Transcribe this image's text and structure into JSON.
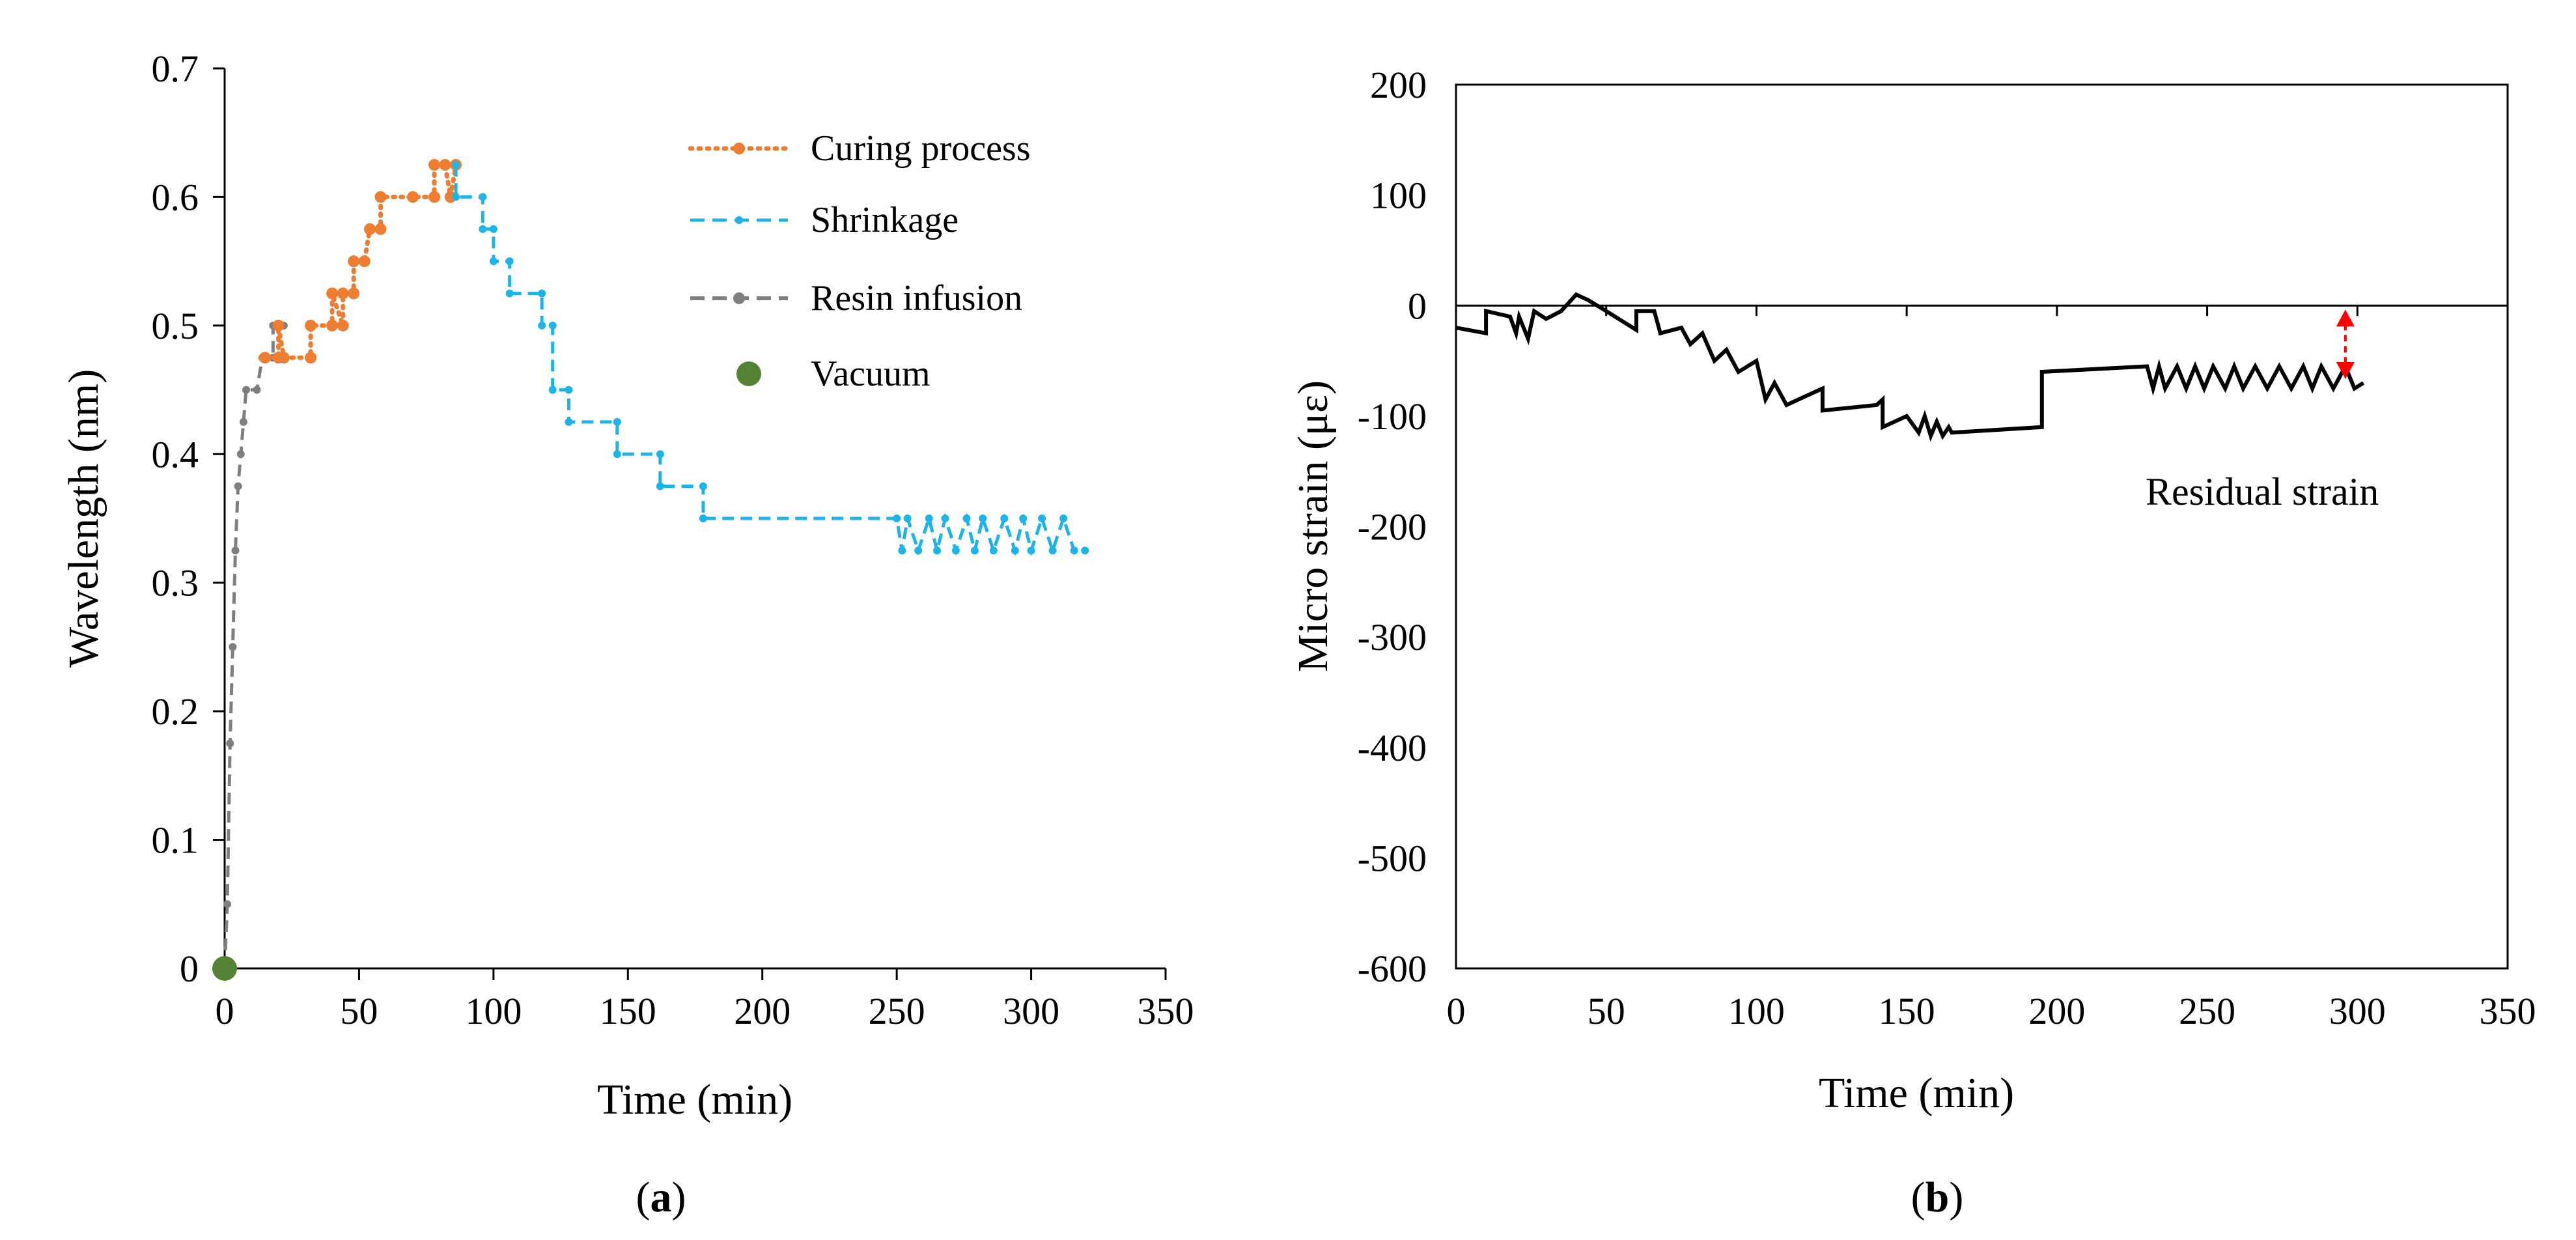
{
  "chart_data": [
    {
      "type": "line",
      "panel_label": "a",
      "xlabel": "Time (min)",
      "ylabel": "Wavelength (nm)",
      "xlim": [
        0,
        350
      ],
      "ylim": [
        0,
        0.7
      ],
      "x_ticks": [
        "0",
        "50",
        "100",
        "150",
        "200",
        "250",
        "300",
        "350"
      ],
      "y_ticks": [
        "0",
        "0.1",
        "0.2",
        "0.3",
        "0.4",
        "0.5",
        "0.6",
        "0.7"
      ],
      "legend_position": "top-right",
      "series": [
        {
          "name": "Curing process",
          "color": "#ED7D31",
          "style": "dotted",
          "points": [
            [
              15,
              0.475
            ],
            [
              20,
              0.475
            ],
            [
              20,
              0.5
            ],
            [
              22,
              0.475
            ],
            [
              32,
              0.475
            ],
            [
              32,
              0.5
            ],
            [
              40,
              0.5
            ],
            [
              40,
              0.525
            ],
            [
              44,
              0.5
            ],
            [
              44,
              0.525
            ],
            [
              48,
              0.525
            ],
            [
              48,
              0.55
            ],
            [
              52,
              0.55
            ],
            [
              54,
              0.575
            ],
            [
              58,
              0.575
            ],
            [
              58,
              0.6
            ],
            [
              70,
              0.6
            ],
            [
              78,
              0.6
            ],
            [
              78,
              0.625
            ],
            [
              82,
              0.625
            ],
            [
              84,
              0.6
            ],
            [
              86,
              0.625
            ]
          ]
        },
        {
          "name": "Shrinkage",
          "color": "#1FB4E8",
          "style": "dashed",
          "points": [
            [
              86,
              0.625
            ],
            [
              86,
              0.6
            ],
            [
              96,
              0.6
            ],
            [
              96,
              0.575
            ],
            [
              100,
              0.575
            ],
            [
              100,
              0.55
            ],
            [
              106,
              0.55
            ],
            [
              106,
              0.525
            ],
            [
              118,
              0.525
            ],
            [
              118,
              0.5
            ],
            [
              122,
              0.5
            ],
            [
              122,
              0.45
            ],
            [
              128,
              0.45
            ],
            [
              128,
              0.425
            ],
            [
              146,
              0.425
            ],
            [
              146,
              0.4
            ],
            [
              162,
              0.4
            ],
            [
              162,
              0.375
            ],
            [
              178,
              0.375
            ],
            [
              178,
              0.35
            ],
            [
              250,
              0.35
            ],
            [
              252,
              0.325
            ],
            [
              254,
              0.35
            ],
            [
              258,
              0.325
            ],
            [
              262,
              0.35
            ],
            [
              265,
              0.325
            ],
            [
              268,
              0.35
            ],
            [
              272,
              0.325
            ],
            [
              276,
              0.35
            ],
            [
              279,
              0.325
            ],
            [
              282,
              0.35
            ],
            [
              286,
              0.325
            ],
            [
              290,
              0.35
            ],
            [
              294,
              0.325
            ],
            [
              297,
              0.35
            ],
            [
              300,
              0.325
            ],
            [
              304,
              0.35
            ],
            [
              308,
              0.325
            ],
            [
              312,
              0.35
            ],
            [
              316,
              0.325
            ],
            [
              320,
              0.325
            ]
          ]
        },
        {
          "name": "Resin infusion",
          "color": "#7F7F7F",
          "style": "dashed",
          "points": [
            [
              0,
              0
            ],
            [
              1,
              0.05
            ],
            [
              2,
              0.175
            ],
            [
              3,
              0.25
            ],
            [
              4,
              0.325
            ],
            [
              5,
              0.375
            ],
            [
              6,
              0.4
            ],
            [
              7,
              0.425
            ],
            [
              8,
              0.45
            ],
            [
              12,
              0.45
            ],
            [
              14,
              0.475
            ],
            [
              18,
              0.475
            ],
            [
              18,
              0.5
            ],
            [
              22,
              0.5
            ]
          ]
        },
        {
          "name": "Vacuum",
          "color": "#548235",
          "style": "marker",
          "points": [
            [
              0,
              0
            ]
          ]
        }
      ]
    },
    {
      "type": "line",
      "panel_label": "b",
      "xlabel": "Time (min)",
      "ylabel": "Micro strain (με)",
      "xlim": [
        0,
        350
      ],
      "ylim": [
        -600,
        200
      ],
      "x_ticks": [
        "0",
        "50",
        "100",
        "150",
        "200",
        "250",
        "300",
        "350"
      ],
      "y_ticks": [
        "200",
        "100",
        "0",
        "-100",
        "-200",
        "-300",
        "-400",
        "-500",
        "-600"
      ],
      "annotation": "Residual strain",
      "annotation_span": [
        0,
        -70
      ],
      "annotation_x": 296,
      "series": [
        {
          "name": "Micro strain",
          "color": "#000000",
          "points": [
            [
              0,
              -20
            ],
            [
              10,
              -25
            ],
            [
              10,
              -5
            ],
            [
              18,
              -10
            ],
            [
              20,
              -25
            ],
            [
              21,
              -10
            ],
            [
              24,
              -30
            ],
            [
              26,
              -5
            ],
            [
              30,
              -12
            ],
            [
              35,
              -5
            ],
            [
              40,
              10
            ],
            [
              44,
              5
            ],
            [
              50,
              -5
            ],
            [
              60,
              -22
            ],
            [
              60,
              -5
            ],
            [
              66,
              -5
            ],
            [
              68,
              -25
            ],
            [
              75,
              -20
            ],
            [
              78,
              -35
            ],
            [
              82,
              -25
            ],
            [
              86,
              -50
            ],
            [
              90,
              -40
            ],
            [
              94,
              -60
            ],
            [
              100,
              -50
            ],
            [
              103,
              -85
            ],
            [
              106,
              -70
            ],
            [
              110,
              -90
            ],
            [
              118,
              -80
            ],
            [
              122,
              -75
            ],
            [
              122,
              -95
            ],
            [
              140,
              -90
            ],
            [
              142,
              -85
            ],
            [
              142,
              -110
            ],
            [
              150,
              -100
            ],
            [
              154,
              -115
            ],
            [
              156,
              -100
            ],
            [
              158,
              -118
            ],
            [
              160,
              -105
            ],
            [
              162,
              -118
            ],
            [
              164,
              -110
            ],
            [
              165,
              -115
            ],
            [
              195,
              -110
            ],
            [
              195,
              -60
            ],
            [
              230,
              -55
            ],
            [
              232,
              -75
            ],
            [
              234,
              -55
            ],
            [
              236,
              -75
            ],
            [
              240,
              -55
            ],
            [
              243,
              -75
            ],
            [
              246,
              -55
            ],
            [
              249,
              -75
            ],
            [
              252,
              -55
            ],
            [
              256,
              -75
            ],
            [
              259,
              -55
            ],
            [
              262,
              -75
            ],
            [
              266,
              -55
            ],
            [
              270,
              -75
            ],
            [
              274,
              -55
            ],
            [
              278,
              -75
            ],
            [
              282,
              -55
            ],
            [
              285,
              -75
            ],
            [
              288,
              -55
            ],
            [
              292,
              -75
            ],
            [
              296,
              -55
            ],
            [
              299,
              -75
            ],
            [
              302,
              -70
            ]
          ]
        }
      ]
    }
  ],
  "colors": {
    "arrow": "#FF0000",
    "axis": "#000000",
    "grid": "#000000"
  }
}
